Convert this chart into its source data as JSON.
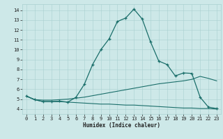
{
  "xlabel": "Humidex (Indice chaleur)",
  "bg_color": "#cde8e8",
  "line_color": "#1a6e6a",
  "xlim": [
    -0.5,
    23.5
  ],
  "ylim": [
    3.5,
    14.6
  ],
  "x_ticks": [
    0,
    1,
    2,
    3,
    4,
    5,
    6,
    7,
    8,
    9,
    10,
    11,
    12,
    13,
    14,
    15,
    16,
    17,
    18,
    19,
    20,
    21,
    22,
    23
  ],
  "y_ticks": [
    4,
    5,
    6,
    7,
    8,
    9,
    10,
    11,
    12,
    13,
    14
  ],
  "main_line": [
    [
      0,
      5.3
    ],
    [
      1,
      4.95
    ],
    [
      2,
      4.75
    ],
    [
      3,
      4.75
    ],
    [
      4,
      4.8
    ],
    [
      5,
      4.7
    ],
    [
      6,
      5.2
    ],
    [
      7,
      6.5
    ],
    [
      8,
      8.5
    ],
    [
      9,
      10.0
    ],
    [
      10,
      11.1
    ],
    [
      11,
      12.85
    ],
    [
      12,
      13.2
    ],
    [
      13,
      14.1
    ],
    [
      14,
      13.1
    ],
    [
      15,
      10.8
    ],
    [
      16,
      8.85
    ],
    [
      17,
      8.5
    ],
    [
      18,
      7.35
    ],
    [
      19,
      7.65
    ],
    [
      20,
      7.6
    ],
    [
      21,
      5.2
    ],
    [
      22,
      4.2
    ],
    [
      23,
      4.05
    ]
  ],
  "upper_flat": [
    [
      0,
      5.3
    ],
    [
      1,
      4.95
    ],
    [
      2,
      4.9
    ],
    [
      3,
      4.9
    ],
    [
      4,
      4.95
    ],
    [
      5,
      5.0
    ],
    [
      6,
      5.1
    ],
    [
      7,
      5.2
    ],
    [
      8,
      5.35
    ],
    [
      9,
      5.5
    ],
    [
      10,
      5.65
    ],
    [
      11,
      5.8
    ],
    [
      12,
      5.95
    ],
    [
      13,
      6.1
    ],
    [
      14,
      6.25
    ],
    [
      15,
      6.4
    ],
    [
      16,
      6.55
    ],
    [
      17,
      6.65
    ],
    [
      18,
      6.75
    ],
    [
      19,
      6.85
    ],
    [
      20,
      7.0
    ],
    [
      21,
      7.3
    ],
    [
      22,
      7.1
    ],
    [
      23,
      6.85
    ]
  ],
  "lower_flat": [
    [
      0,
      5.3
    ],
    [
      1,
      4.95
    ],
    [
      2,
      4.75
    ],
    [
      3,
      4.75
    ],
    [
      4,
      4.75
    ],
    [
      5,
      4.7
    ],
    [
      6,
      4.65
    ],
    [
      7,
      4.6
    ],
    [
      8,
      4.55
    ],
    [
      9,
      4.5
    ],
    [
      10,
      4.5
    ],
    [
      11,
      4.45
    ],
    [
      12,
      4.4
    ],
    [
      13,
      4.4
    ],
    [
      14,
      4.35
    ],
    [
      15,
      4.3
    ],
    [
      16,
      4.25
    ],
    [
      17,
      4.2
    ],
    [
      18,
      4.15
    ],
    [
      19,
      4.1
    ],
    [
      20,
      4.1
    ],
    [
      21,
      4.05
    ],
    [
      22,
      4.05
    ],
    [
      23,
      4.0
    ]
  ]
}
